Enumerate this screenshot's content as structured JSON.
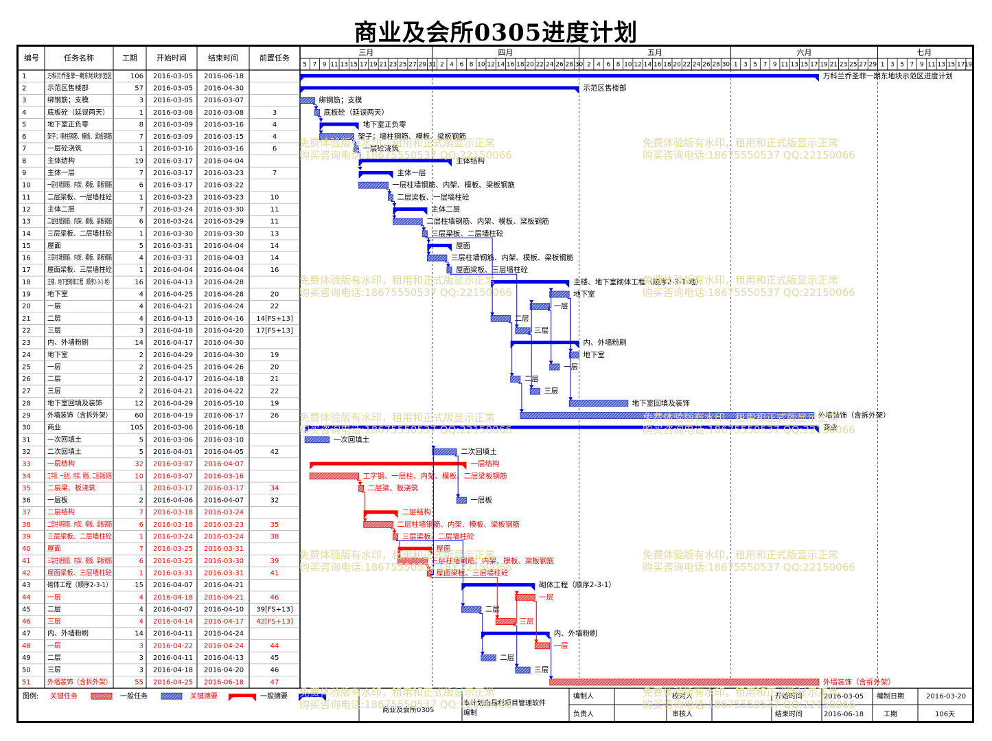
{
  "title": "商业及会所0305进度计划",
  "columns": {
    "id": "编号",
    "name": "任务名称",
    "duration": "工期",
    "start": "开始时间",
    "end": "结束时间",
    "pred": "前置任务"
  },
  "colors": {
    "summary": "#0000ee",
    "normal": "#4a5cd6",
    "critical": "#ff0000",
    "critical_fill": "#e85a5a",
    "grid": "#888888"
  },
  "timeline": {
    "months": [
      "三月",
      "四月",
      "五月",
      "六月",
      "七月"
    ],
    "start": "2016-03-05",
    "end": "2016-07-19",
    "day_labels": [
      "5",
      "7",
      "9",
      "11",
      "13",
      "15",
      "17",
      "19",
      "21",
      "23",
      "25",
      "27",
      "29",
      "31",
      "2",
      "4",
      "6",
      "8",
      "10",
      "12",
      "14",
      "16",
      "18",
      "20",
      "22",
      "24",
      "26",
      "28",
      "30",
      "2",
      "4",
      "6",
      "8",
      "10",
      "12",
      "14",
      "16",
      "18",
      "20",
      "22",
      "24",
      "26",
      "28",
      "30",
      "1",
      "3",
      "5",
      "7",
      "9",
      "11",
      "13",
      "15",
      "17",
      "19",
      "21",
      "23",
      "25",
      "27",
      "29",
      "1",
      "3",
      "5",
      "7",
      "9",
      "11",
      "13",
      "15",
      "17",
      "19"
    ]
  },
  "chart_data": {
    "type": "gantt",
    "tasks": [
      {
        "id": "1",
        "name": "万科兰乔圣菲一期东地块示范区",
        "duration": 106,
        "start": "2016-03-05",
        "end": "2016-06-18",
        "pred": "",
        "type": "summary",
        "label": "万科兰乔圣菲一期东地块示范区进度计划"
      },
      {
        "id": "2",
        "name": "示范区售楼部",
        "duration": 57,
        "start": "2016-03-05",
        "end": "2016-04-30",
        "pred": "",
        "type": "summary",
        "label": "示范区售楼部"
      },
      {
        "id": "3",
        "name": "绑钢筋；支模",
        "duration": 3,
        "start": "2016-03-05",
        "end": "2016-03-07",
        "pred": "",
        "type": "task",
        "label": "绑钢筋；支模"
      },
      {
        "id": "4",
        "name": "底板砼（延误两天）",
        "duration": 1,
        "start": "2016-03-08",
        "end": "2016-03-08",
        "pred": "3",
        "type": "task",
        "label": "底板砼（延误两天）"
      },
      {
        "id": "5",
        "name": "地下室正负零",
        "duration": 8,
        "start": "2016-03-09",
        "end": "2016-03-16",
        "pred": "4",
        "type": "summary",
        "label": "地下室正负零"
      },
      {
        "id": "6",
        "name": "架子；墙柱钢筋、模板、梁板钢筋",
        "duration": 7,
        "start": "2016-03-09",
        "end": "2016-03-15",
        "pred": "4",
        "type": "task",
        "label": "架子；墙柱钢筋、模板、梁板钢筋"
      },
      {
        "id": "7",
        "name": "一层砼浇筑",
        "duration": 1,
        "start": "2016-03-16",
        "end": "2016-03-16",
        "pred": "6",
        "type": "task",
        "label": "一层砼浇筑"
      },
      {
        "id": "8",
        "name": "主体结构",
        "duration": 19,
        "start": "2016-03-17",
        "end": "2016-04-04",
        "pred": "",
        "type": "summary",
        "label": "主体结构"
      },
      {
        "id": "9",
        "name": "主体一层",
        "duration": 7,
        "start": "2016-03-17",
        "end": "2016-03-23",
        "pred": "7",
        "type": "summary",
        "label": "主体一层"
      },
      {
        "id": "10",
        "name": "一层柱墙钢筋、内架、模板、梁板钢筋",
        "duration": 6,
        "start": "2016-03-17",
        "end": "2016-03-22",
        "pred": "",
        "type": "task",
        "label": "一层柱墙钢筋、内架、模板、梁板钢筋"
      },
      {
        "id": "11",
        "name": "二层梁板、一层墙柱砼",
        "duration": 1,
        "start": "2016-03-23",
        "end": "2016-03-23",
        "pred": "10",
        "type": "task",
        "label": "二层梁板、一层墙柱砼"
      },
      {
        "id": "12",
        "name": "主体二层",
        "duration": 7,
        "start": "2016-03-24",
        "end": "2016-03-30",
        "pred": "11",
        "type": "summary",
        "label": "主体二层"
      },
      {
        "id": "13",
        "name": "二层柱墙钢筋、内架、模板、梁板钢筋",
        "duration": 6,
        "start": "2016-03-24",
        "end": "2016-03-29",
        "pred": "11",
        "type": "task",
        "label": "二层柱墙钢筋、内架、模板、梁板钢筋"
      },
      {
        "id": "14",
        "name": "三层梁板、二层墙柱砼",
        "duration": 1,
        "start": "2016-03-30",
        "end": "2016-03-30",
        "pred": "13",
        "type": "task",
        "label": "三层梁板、二层墙柱砼"
      },
      {
        "id": "15",
        "name": "屋面",
        "duration": 5,
        "start": "2016-03-31",
        "end": "2016-04-04",
        "pred": "14",
        "type": "summary",
        "label": "屋面"
      },
      {
        "id": "16",
        "name": "三层柱墙钢筋、内架、模板、梁板钢筋",
        "duration": 4,
        "start": "2016-03-31",
        "end": "2016-04-03",
        "pred": "14",
        "type": "task",
        "label": "三层柱墙钢筋、内架、模板、梁板钢筋"
      },
      {
        "id": "17",
        "name": "屋面梁板、三层墙柱砼",
        "duration": 1,
        "start": "2016-04-04",
        "end": "2016-04-04",
        "pred": "16",
        "type": "task",
        "label": "屋面梁板、三层墙柱砼"
      },
      {
        "id": "18",
        "name": "主楼、地下室砌体工程（顺序2-3-1-地）",
        "duration": 16,
        "start": "2016-04-13",
        "end": "2016-04-28",
        "pred": "",
        "type": "summary",
        "label": "主楼、地下室砌体工程（顺序2-3-1-地）"
      },
      {
        "id": "19",
        "name": "地下室",
        "duration": 4,
        "start": "2016-04-25",
        "end": "2016-04-28",
        "pred": "20",
        "type": "task",
        "label": "地下室"
      },
      {
        "id": "20",
        "name": "一层",
        "duration": 4,
        "start": "2016-04-21",
        "end": "2016-04-24",
        "pred": "22",
        "type": "task",
        "label": "一层"
      },
      {
        "id": "21",
        "name": "二层",
        "duration": 4,
        "start": "2016-04-13",
        "end": "2016-04-16",
        "pred": "14[FS+13]",
        "type": "task",
        "label": "二层"
      },
      {
        "id": "22",
        "name": "三层",
        "duration": 3,
        "start": "2016-04-18",
        "end": "2016-04-20",
        "pred": "17[FS+13]",
        "type": "task",
        "label": "三层"
      },
      {
        "id": "23",
        "name": "内、外墙粉刷",
        "duration": 14,
        "start": "2016-04-17",
        "end": "2016-04-30",
        "pred": "",
        "type": "summary",
        "label": "内、外墙粉刷"
      },
      {
        "id": "24",
        "name": "地下室",
        "duration": 2,
        "start": "2016-04-29",
        "end": "2016-04-30",
        "pred": "19",
        "type": "task",
        "label": "地下室"
      },
      {
        "id": "25",
        "name": "一层",
        "duration": 2,
        "start": "2016-04-25",
        "end": "2016-04-26",
        "pred": "20",
        "type": "task",
        "label": "一层"
      },
      {
        "id": "26",
        "name": "二层",
        "duration": 2,
        "start": "2016-04-17",
        "end": "2016-04-18",
        "pred": "21",
        "type": "task",
        "label": "二层"
      },
      {
        "id": "27",
        "name": "三层",
        "duration": 2,
        "start": "2016-04-21",
        "end": "2016-04-22",
        "pred": "22",
        "type": "task",
        "label": "三层"
      },
      {
        "id": "28",
        "name": "地下室回填及装饰",
        "duration": 12,
        "start": "2016-04-29",
        "end": "2016-05-10",
        "pred": "19",
        "type": "task",
        "label": "地下室回填及装饰"
      },
      {
        "id": "29",
        "name": "外墙装饰（含拆外架）",
        "duration": 60,
        "start": "2016-04-19",
        "end": "2016-06-17",
        "pred": "26",
        "type": "task",
        "label": "外墙装饰（含拆外架）"
      },
      {
        "id": "30",
        "name": "商业",
        "duration": 105,
        "start": "2016-03-06",
        "end": "2016-06-18",
        "pred": "",
        "type": "summary",
        "label": "商业"
      },
      {
        "id": "31",
        "name": "一次回填土",
        "duration": 5,
        "start": "2016-03-06",
        "end": "2016-03-10",
        "pred": "",
        "type": "task",
        "label": "一次回填土"
      },
      {
        "id": "32",
        "name": "二次回填土",
        "duration": 5,
        "start": "2016-04-01",
        "end": "2016-04-05",
        "pred": "42",
        "type": "task",
        "label": "二次回填土"
      },
      {
        "id": "33",
        "name": "一层结构",
        "duration": 32,
        "start": "2016-03-07",
        "end": "2016-04-07",
        "pred": "",
        "type": "critical_summary",
        "label": "一层结构"
      },
      {
        "id": "34",
        "name": "工字钢、一层柱、内架、模板、二层梁板钢筋",
        "duration": 10,
        "start": "2016-03-07",
        "end": "2016-03-16",
        "pred": "",
        "type": "critical",
        "label": "工字钢、一层柱、内架、模板、二层梁板钢筋"
      },
      {
        "id": "35",
        "name": "二层梁、板浇筑",
        "duration": 1,
        "start": "2016-03-17",
        "end": "2016-03-17",
        "pred": "34",
        "type": "critical",
        "label": "二层梁、板浇筑"
      },
      {
        "id": "36",
        "name": "一层板",
        "duration": 2,
        "start": "2016-04-06",
        "end": "2016-04-07",
        "pred": "32",
        "type": "task",
        "label": "一层板"
      },
      {
        "id": "37",
        "name": "二层结构",
        "duration": 7,
        "start": "2016-03-18",
        "end": "2016-03-24",
        "pred": "",
        "type": "critical_summary",
        "label": "二层结构"
      },
      {
        "id": "38",
        "name": "二层柱墙钢筋、内架、模板、梁板钢筋",
        "duration": 6,
        "start": "2016-03-18",
        "end": "2016-03-23",
        "pred": "35",
        "type": "critical",
        "label": "二层柱墙钢筋、内架、模板、梁板钢筋"
      },
      {
        "id": "39",
        "name": "三层梁板、二层墙柱砼",
        "duration": 1,
        "start": "2016-03-24",
        "end": "2016-03-24",
        "pred": "38",
        "type": "critical",
        "label": "三层梁板、二层墙柱砼"
      },
      {
        "id": "40",
        "name": "屋面",
        "duration": 7,
        "start": "2016-03-25",
        "end": "2016-03-31",
        "pred": "",
        "type": "critical_summary",
        "label": "屋面"
      },
      {
        "id": "41",
        "name": "三层柱墙钢筋、内架、模板、梁板钢筋",
        "duration": 6,
        "start": "2016-03-25",
        "end": "2016-03-30",
        "pred": "39",
        "type": "critical",
        "label": "三层柱墙钢筋、内架、模板、梁板钢筋"
      },
      {
        "id": "42",
        "name": "屋面梁板、三层墙柱砼",
        "duration": 1,
        "start": "2016-03-31",
        "end": "2016-03-31",
        "pred": "41",
        "type": "critical",
        "label": "屋面梁板、三层墙柱砼"
      },
      {
        "id": "43",
        "name": "砌体工程（顺序2-3-1）",
        "duration": 15,
        "start": "2016-04-07",
        "end": "2016-04-21",
        "pred": "",
        "type": "summary",
        "label": "砌体工程（顺序2-3-1）"
      },
      {
        "id": "44",
        "name": "一层",
        "duration": 4,
        "start": "2016-04-18",
        "end": "2016-04-21",
        "pred": "46",
        "type": "critical",
        "label": "一层"
      },
      {
        "id": "45",
        "name": "二层",
        "duration": 4,
        "start": "2016-04-07",
        "end": "2016-04-10",
        "pred": "39[FS+13]",
        "type": "task",
        "label": "二层"
      },
      {
        "id": "46",
        "name": "三层",
        "duration": 4,
        "start": "2016-04-14",
        "end": "2016-04-17",
        "pred": "42[FS+13]",
        "type": "critical",
        "label": "三层"
      },
      {
        "id": "47",
        "name": "内、外墙粉刷",
        "duration": 14,
        "start": "2016-04-11",
        "end": "2016-04-24",
        "pred": "",
        "type": "summary",
        "label": "内、外墙粉刷"
      },
      {
        "id": "48",
        "name": "一层",
        "duration": 3,
        "start": "2016-04-22",
        "end": "2016-04-24",
        "pred": "44",
        "type": "critical",
        "label": "一层"
      },
      {
        "id": "49",
        "name": "二层",
        "duration": 3,
        "start": "2016-04-11",
        "end": "2016-04-13",
        "pred": "45",
        "type": "task",
        "label": "二层"
      },
      {
        "id": "50",
        "name": "三层",
        "duration": 3,
        "start": "2016-04-18",
        "end": "2016-04-20",
        "pred": "46",
        "type": "task",
        "label": "三层"
      },
      {
        "id": "51",
        "name": "外墙装饰（含拆外架）",
        "duration": 55,
        "start": "2016-04-25",
        "end": "2016-06-18",
        "pred": "47",
        "type": "critical",
        "label": "外墙装饰（含拆外架）"
      }
    ]
  },
  "legend": {
    "prefix": "图例:",
    "critical": "关键任务",
    "normal": "一般任务",
    "critical_summary": "关键摘要",
    "normal_summary": "一般摘要"
  },
  "footer": {
    "project": "商业及会所0305",
    "software_line1": "本计划由易利项目管理软件",
    "software_line2": "编制",
    "editor_label": "编制人",
    "owner_label": "负责人",
    "checker_label": "校对人",
    "reviewer_label": "审核人",
    "start_label": "开始时间",
    "start_value": "2016-03-05",
    "end_label": "结束时间",
    "end_value": "2016-06-18",
    "date_label": "编制日期",
    "date_value": "2016-03-20",
    "duration_label": "工期",
    "duration_value": "106天"
  },
  "watermark": {
    "line1": "免费体验版有水印，租用和正式版显示正常",
    "line2": "购买咨询电话:18675550537 QQ:22150066"
  }
}
